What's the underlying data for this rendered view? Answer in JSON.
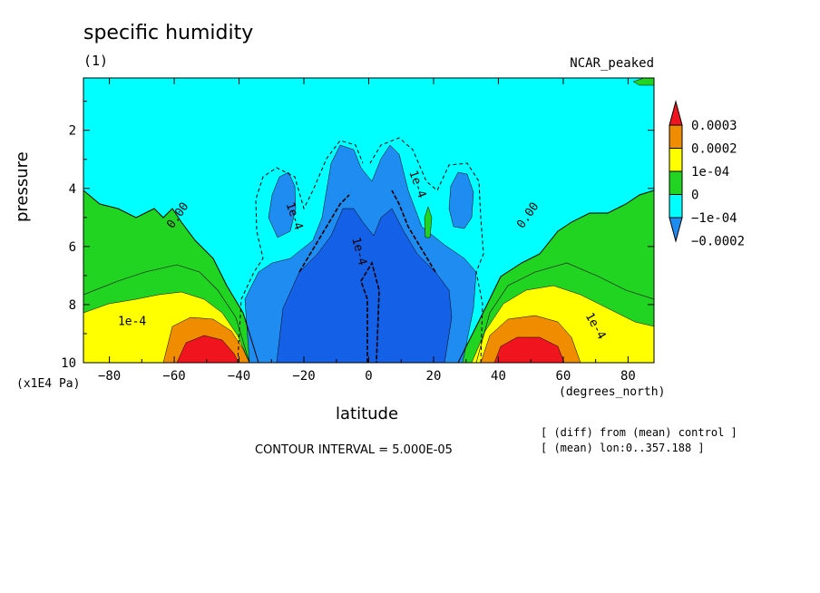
{
  "header": {
    "title": "specific humidity",
    "subtitle": "(1)",
    "model": "NCAR_peaked"
  },
  "footer": {
    "contour_interval": "CONTOUR INTERVAL = 5.000E-05",
    "note_line1": "[ (diff) from (mean) control ]",
    "note_line2": "[ (mean) lon:0..357.188 ]"
  },
  "colors": {
    "red": "#f0141e",
    "orange": "#f08c00",
    "yellow": "#ffff00",
    "green": "#22d422",
    "cyan": "#00ffff",
    "blue": "#1e8cf0",
    "dark_blue": "#1460e6"
  },
  "chart_data": {
    "type": "heatmap",
    "subtype": "filled-contour",
    "xlabel": "latitude",
    "xunits": "(degrees_north)",
    "ylabel": "pressure",
    "yunits": "(x1E4 Pa)",
    "xlim": [
      -88,
      88
    ],
    "ylim": [
      10,
      0.2
    ],
    "xticks": [
      "-80",
      "-60",
      "-40",
      "-20",
      "0",
      "20",
      "40",
      "60",
      "80"
    ],
    "yticks": [
      "2",
      "4",
      "6",
      "8",
      "10"
    ],
    "contour_labels": [
      "0.00",
      "0.00",
      "1e-4",
      "1e-4",
      "1e-4",
      "1e-4",
      "1e-4"
    ],
    "colorbar": {
      "levels": [
        "0.0003",
        "0.0002",
        "1e-04",
        "0",
        "−1e-04",
        "−0.0002"
      ],
      "colors": [
        "red",
        "orange",
        "yellow",
        "green",
        "cyan",
        "blue"
      ]
    }
  }
}
